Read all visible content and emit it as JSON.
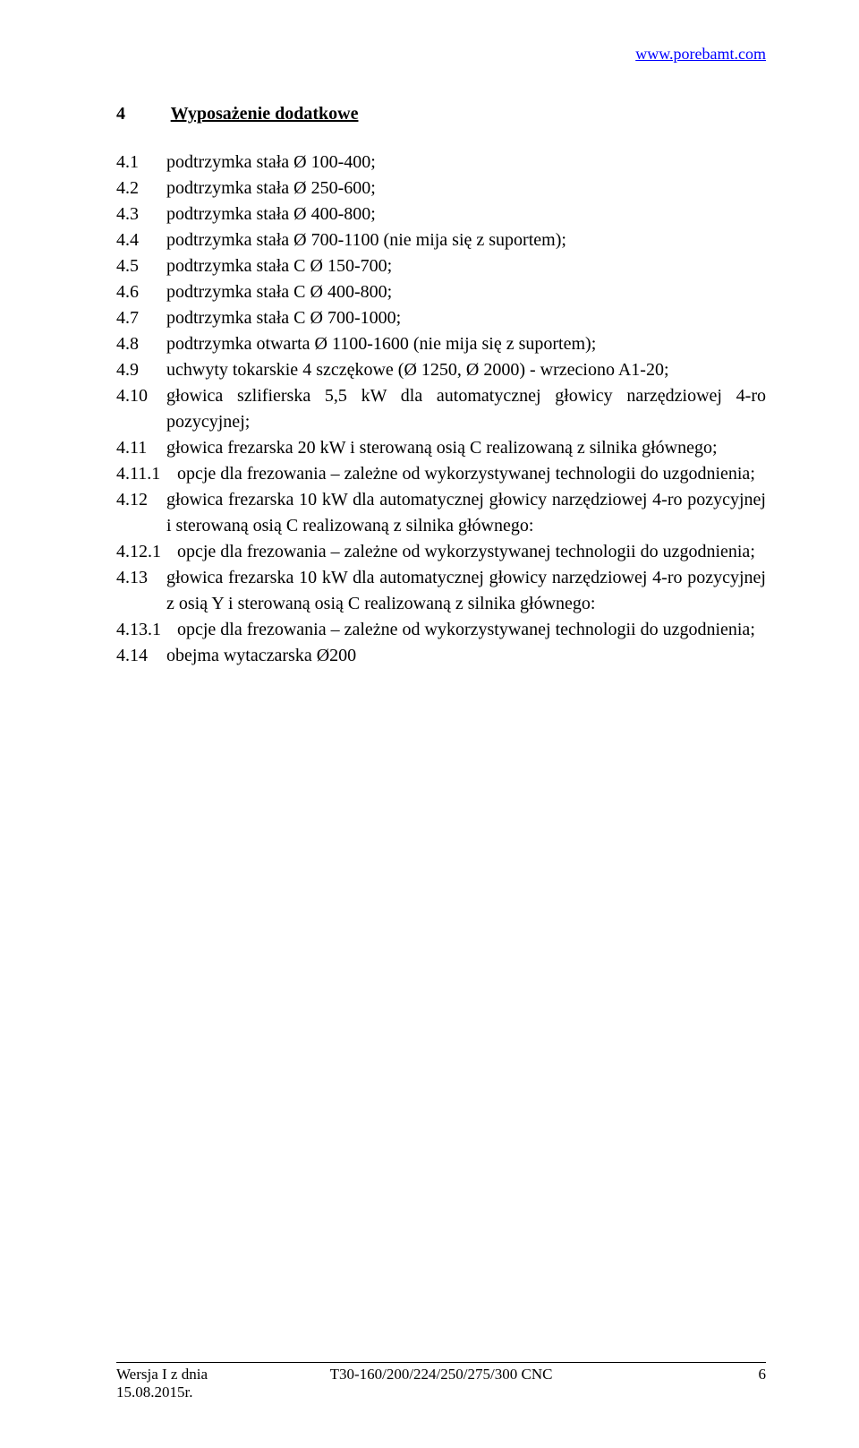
{
  "url": "www.porebamt.com",
  "section": {
    "number": "4",
    "title": "Wyposażenie dodatkowe"
  },
  "items": [
    {
      "num": "4.1",
      "text": "podtrzymka stała Ø 100-400;",
      "sub": false
    },
    {
      "num": "4.2",
      "text": "podtrzymka stała Ø 250-600;",
      "sub": false
    },
    {
      "num": "4.3",
      "text": "podtrzymka stała Ø 400-800;",
      "sub": false
    },
    {
      "num": "4.4",
      "text": "podtrzymka stała Ø 700-1100 (nie mija się z suportem);",
      "sub": false
    },
    {
      "num": "4.5",
      "text": "podtrzymka stała C Ø 150-700;",
      "sub": false
    },
    {
      "num": "4.6",
      "text": "podtrzymka stała C Ø 400-800;",
      "sub": false
    },
    {
      "num": "4.7",
      "text": "podtrzymka stała C Ø 700-1000;",
      "sub": false
    },
    {
      "num": "4.8",
      "text": "podtrzymka otwarta Ø 1100-1600 (nie mija się z suportem);",
      "sub": false
    },
    {
      "num": "4.9",
      "text": "uchwyty tokarskie 4 szczękowe (Ø 1250, Ø 2000) - wrzeciono A1-20;",
      "sub": false
    },
    {
      "num": "4.10",
      "text": "głowica szlifierska 5,5 kW dla automatycznej głowicy narzędziowej 4-ro pozycyjnej;",
      "sub": false
    },
    {
      "num": "4.11",
      "text": "głowica frezarska 20 kW i sterowaną osią C realizowaną z silnika głównego;",
      "sub": false
    },
    {
      "num": "4.11.1",
      "text": "opcje dla frezowania – zależne od wykorzystywanej technologii do uzgodnienia;",
      "sub": true
    },
    {
      "num": "4.12",
      "text": "głowica frezarska 10 kW dla automatycznej głowicy narzędziowej 4-ro pozycyjnej i sterowaną osią C realizowaną z silnika głównego:",
      "sub": false
    },
    {
      "num": "4.12.1",
      "text": "opcje dla frezowania – zależne od wykorzystywanej technologii do uzgodnienia;",
      "sub": true
    },
    {
      "num": "4.13",
      "text": "głowica frezarska 10 kW dla automatycznej głowicy narzędziowej 4-ro pozycyjnej z osią Y i sterowaną osią C realizowaną z silnika głównego:",
      "sub": false
    },
    {
      "num": "4.13.1",
      "text": "opcje dla frezowania – zależne od wykorzystywanej technologii do uzgodnienia;",
      "sub": true
    },
    {
      "num": "4.14",
      "text": "obejma wytaczarska Ø200",
      "sub": false
    }
  ],
  "footer": {
    "left_line1": "Wersja I z dnia",
    "left_line2": "15.08.2015r.",
    "center": "T30-160/200/224/250/275/300 CNC",
    "page": "6"
  }
}
